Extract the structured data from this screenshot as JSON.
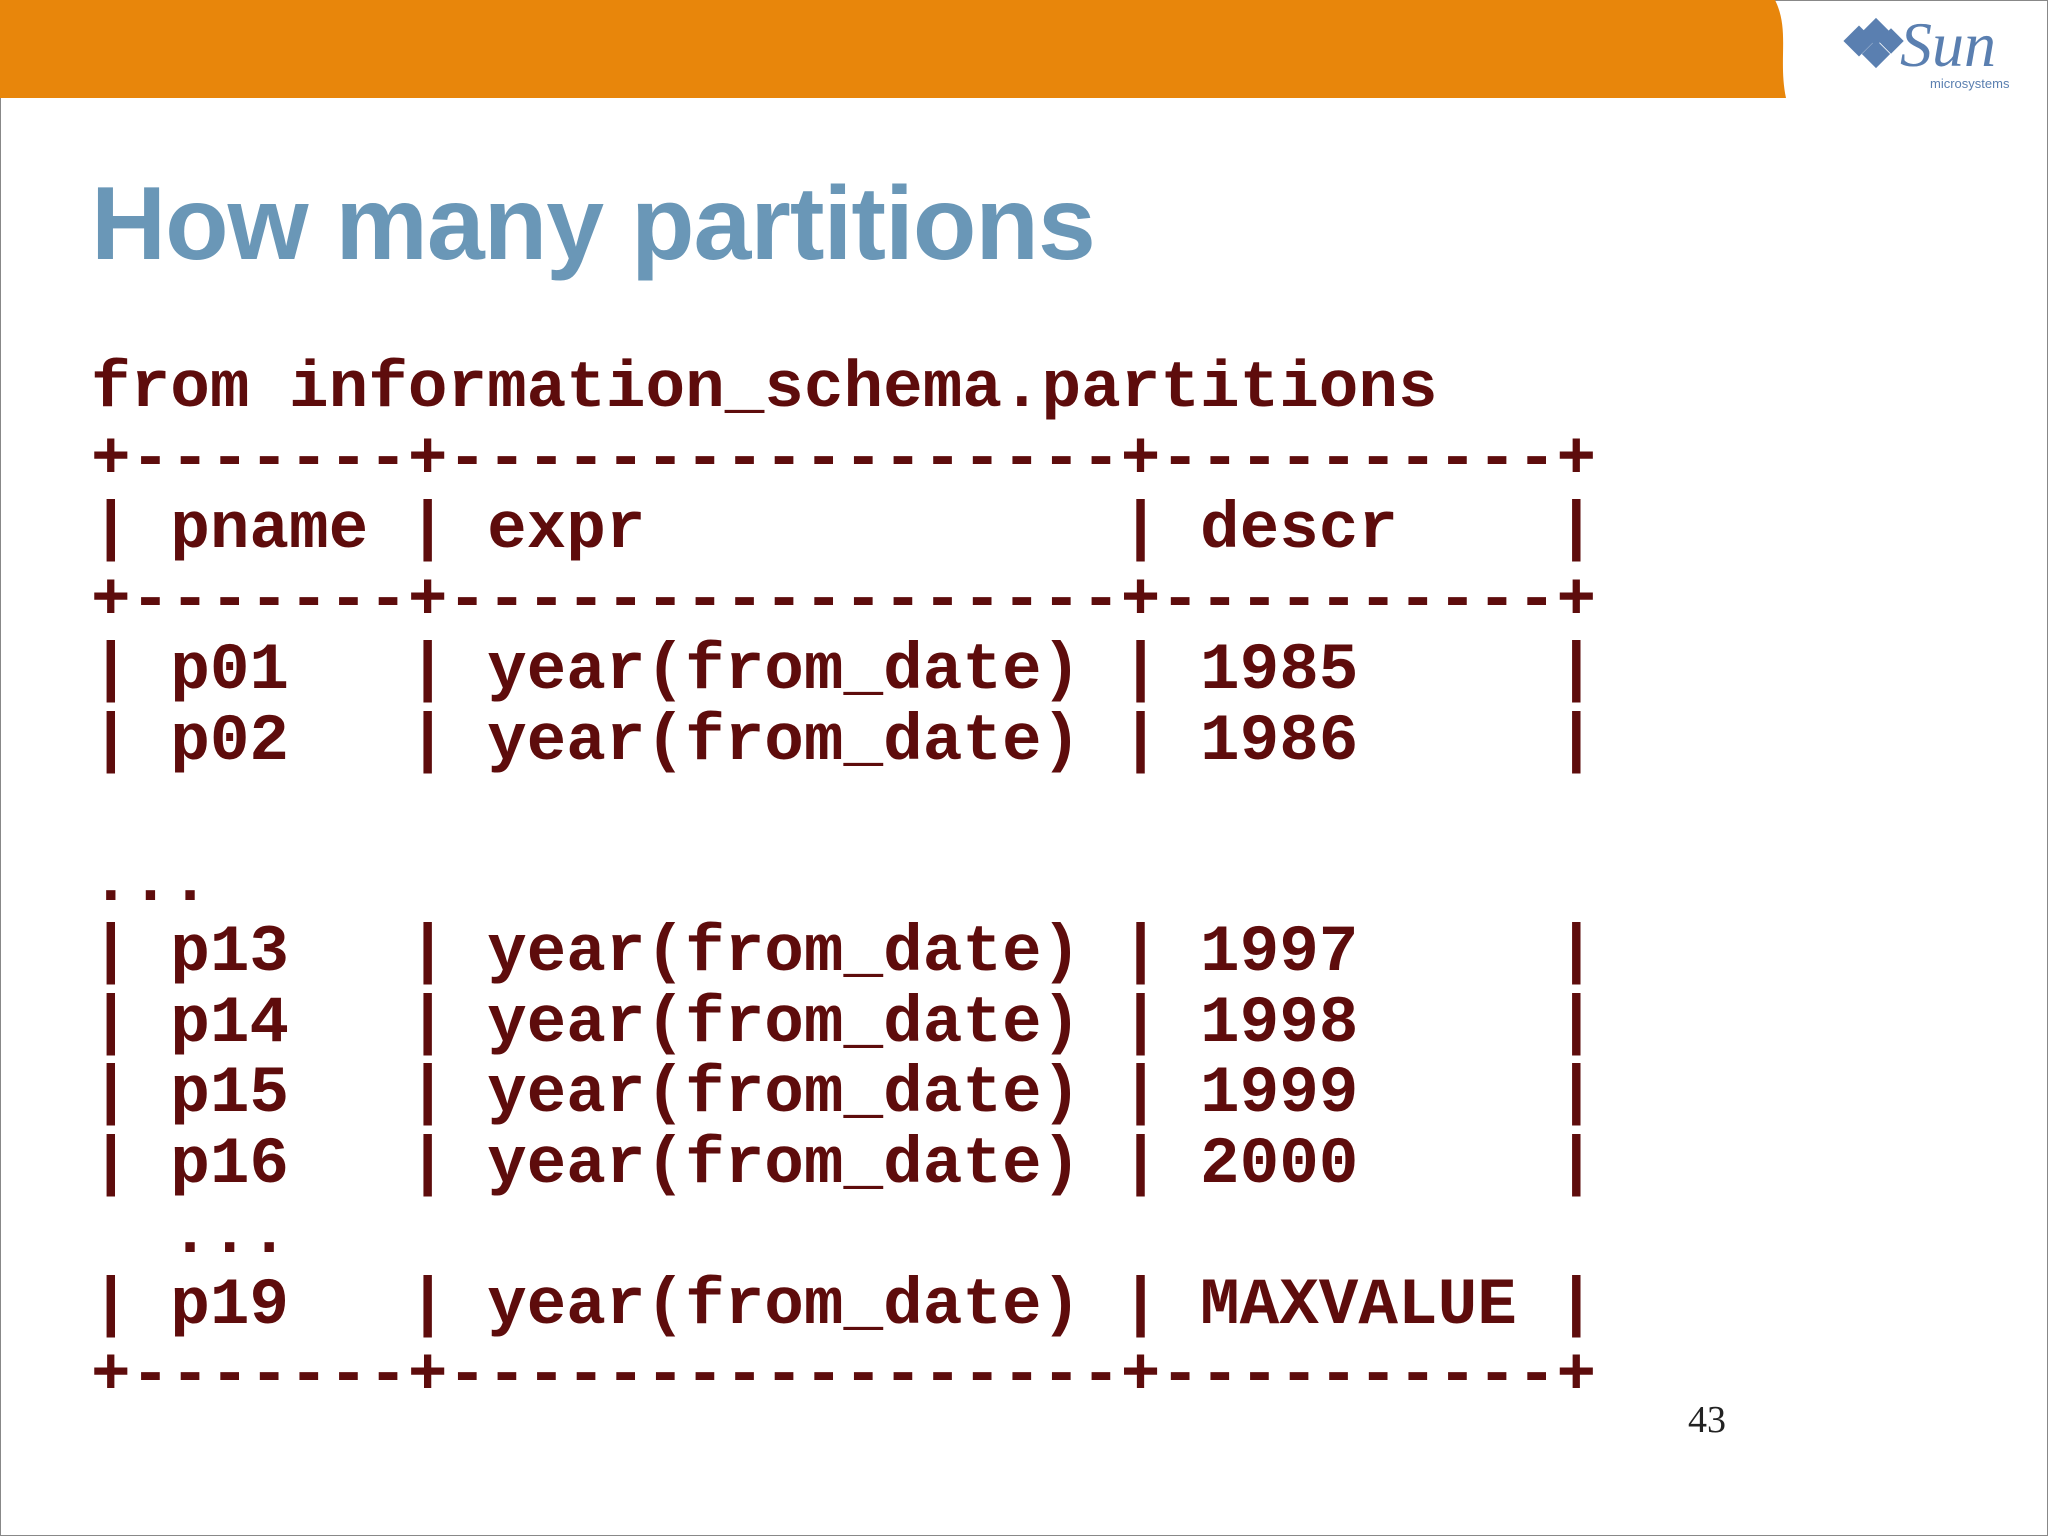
{
  "header": {
    "logo": {
      "name": "Sun",
      "tagline": "microsystems"
    }
  },
  "title": "How many partitions",
  "code": {
    "lines": [
      "from information_schema.partitions",
      "+-------+-----------------+----------+",
      "| pname | expr            | descr    |",
      "+-------+-----------------+----------+",
      "| p01   | year(from_date) | 1985     |",
      "| p02   | year(from_date) | 1986     |",
      "",
      "...",
      "| p13   | year(from_date) | 1997     |",
      "| p14   | year(from_date) | 1998     |",
      "| p15   | year(from_date) | 1999     |",
      "| p16   | year(from_date) | 2000     |",
      "  ...",
      "| p19   | year(from_date) | MAXVALUE |",
      "+-------+-----------------+----------+"
    ]
  },
  "page_number": "43"
}
